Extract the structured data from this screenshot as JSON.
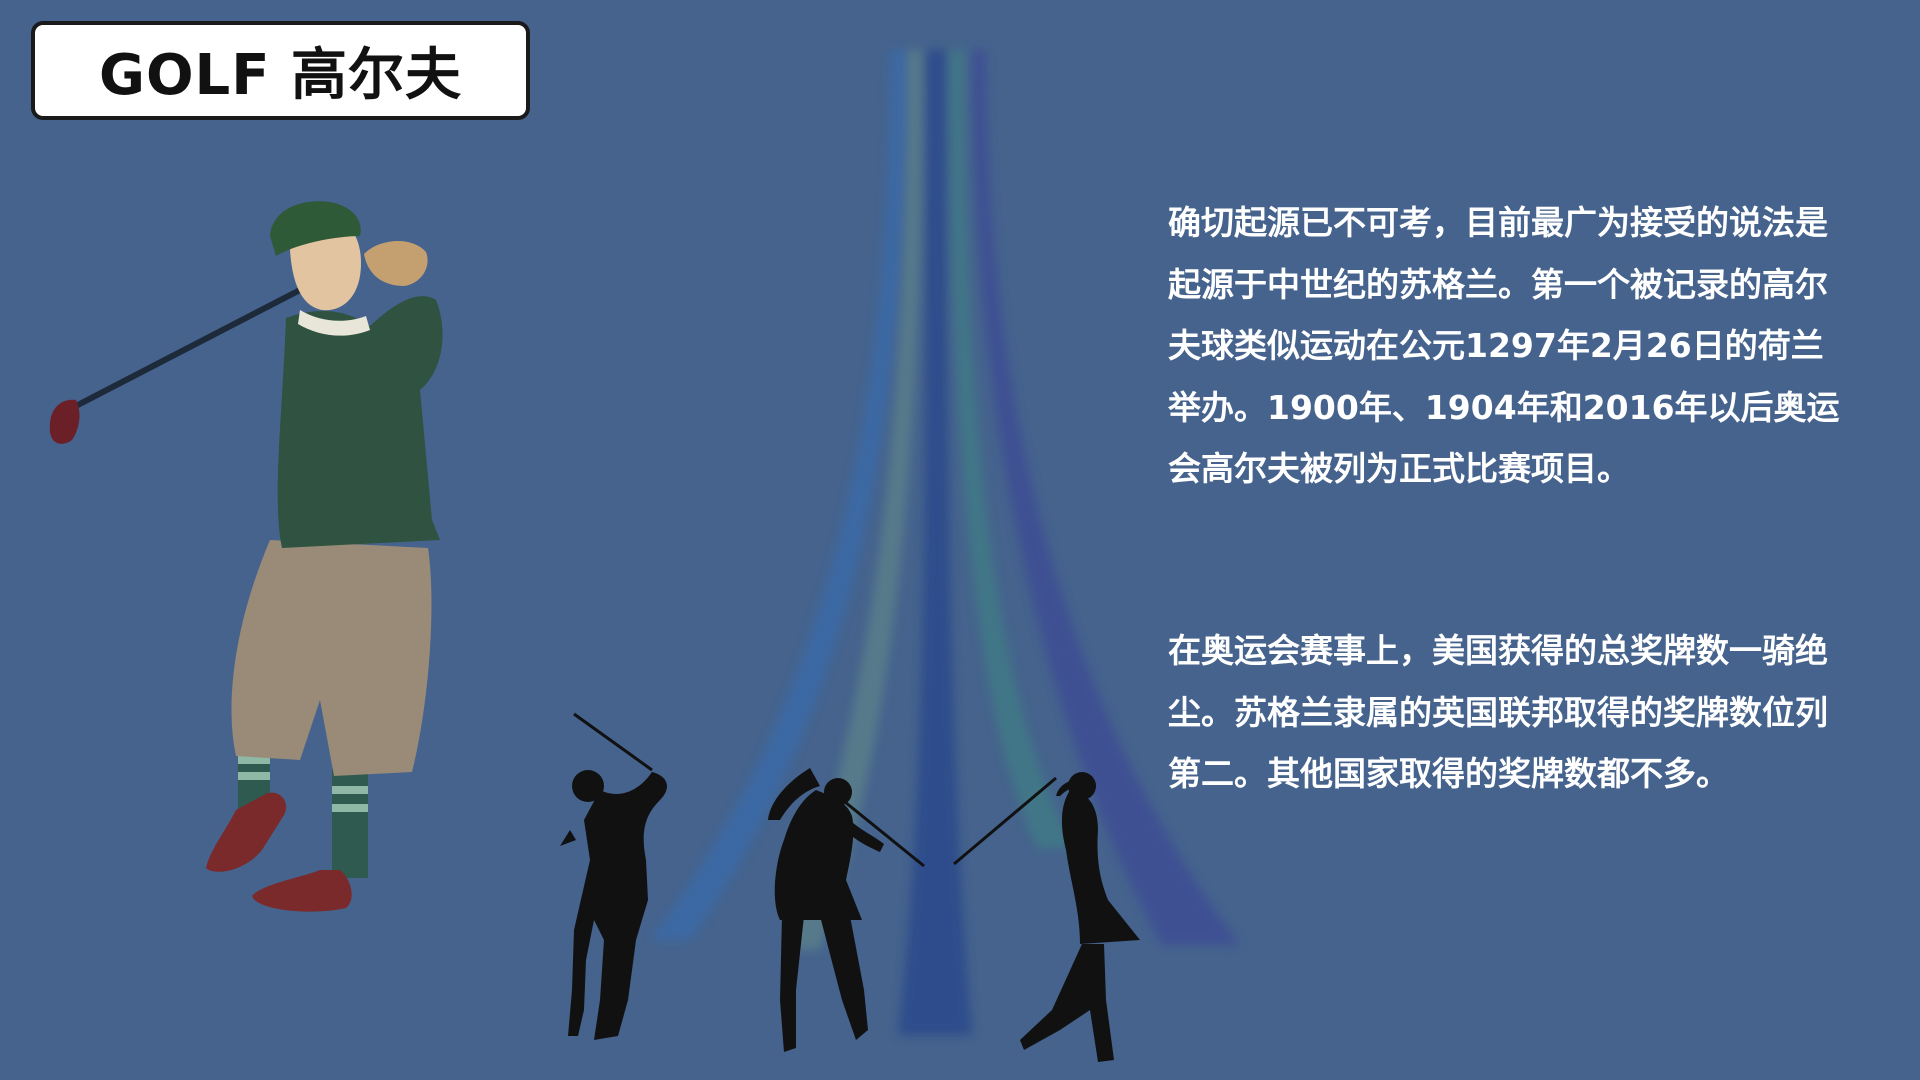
{
  "title": "GOLF 高尔夫",
  "paragraphs": [
    "确切起源已不可考，目前最广为接受的说法是起源于中世纪的苏格兰。第一个被记录的高尔夫球类似运动在公元1297年2月26日的荷兰举办。1900年、1904年和2016年以后奥运会高尔夫被列为正式比赛项目。",
    "在奥运会赛事上，美国获得的总奖牌数一骑绝尘。苏格兰隶属的英国联邦取得的奖牌数位列第二。其他国家取得的奖牌数都不多。"
  ],
  "colors": {
    "background": "#45638d",
    "title_box": "#ffffff",
    "text": "#ffffff"
  }
}
